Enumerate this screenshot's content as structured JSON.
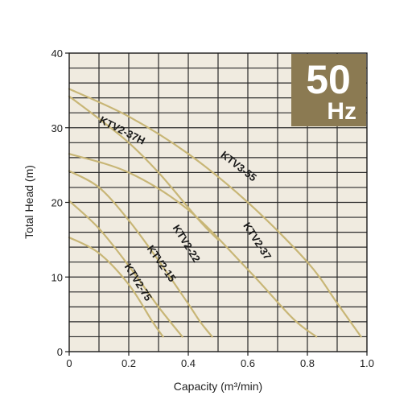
{
  "chart_data": {
    "type": "line",
    "title": "",
    "xlabel": "Capacity (m³/min)",
    "ylabel": "Total Head (m)",
    "xlim": [
      0,
      1.0
    ],
    "ylim": [
      0,
      40
    ],
    "x_ticks": [
      "0",
      "0.2",
      "0.4",
      "0.6",
      "0.8",
      "1.0"
    ],
    "y_ticks": [
      "0",
      "10",
      "20",
      "30",
      "40"
    ],
    "grid": true,
    "badge": {
      "big": "50",
      "small": "Hz"
    },
    "colors": {
      "background": "#f0ebe0",
      "grid": "#2a2a2a",
      "curve": "#c8b676",
      "badge": "#8b7a52"
    },
    "series": [
      {
        "name": "KTV2-75",
        "points": [
          [
            0,
            15.3
          ],
          [
            0.1,
            13.2
          ],
          [
            0.2,
            9.0
          ],
          [
            0.28,
            4.0
          ],
          [
            0.315,
            2.0
          ]
        ]
      },
      {
        "name": "KTV2-15",
        "points": [
          [
            0,
            20.2
          ],
          [
            0.1,
            16.5
          ],
          [
            0.2,
            11.5
          ],
          [
            0.3,
            6.0
          ],
          [
            0.38,
            2.0
          ]
        ]
      },
      {
        "name": "KTV2-22",
        "points": [
          [
            0,
            24.2
          ],
          [
            0.1,
            22.0
          ],
          [
            0.2,
            17.6
          ],
          [
            0.3,
            12.2
          ],
          [
            0.4,
            6.4
          ],
          [
            0.44,
            4.0
          ],
          [
            0.48,
            2.0
          ]
        ]
      },
      {
        "name": "KTV2-37",
        "points": [
          [
            0,
            26.5
          ],
          [
            0.2,
            24.0
          ],
          [
            0.4,
            19.0
          ],
          [
            0.6,
            11.0
          ],
          [
            0.75,
            4.5
          ],
          [
            0.83,
            2.0
          ]
        ]
      },
      {
        "name": "KTV2-37H",
        "points": [
          [
            0,
            34.2
          ],
          [
            0.1,
            31.2
          ],
          [
            0.2,
            28.0
          ],
          [
            0.3,
            24.0
          ],
          [
            0.4,
            19.3
          ],
          [
            0.45,
            17.0
          ],
          [
            0.5,
            15.0
          ]
        ]
      },
      {
        "name": "KTV3-55",
        "points": [
          [
            0,
            35.2
          ],
          [
            0.2,
            31.5
          ],
          [
            0.4,
            26.5
          ],
          [
            0.6,
            20.0
          ],
          [
            0.8,
            12.0
          ],
          [
            0.9,
            6.5
          ],
          [
            0.98,
            2.0
          ]
        ]
      }
    ]
  }
}
